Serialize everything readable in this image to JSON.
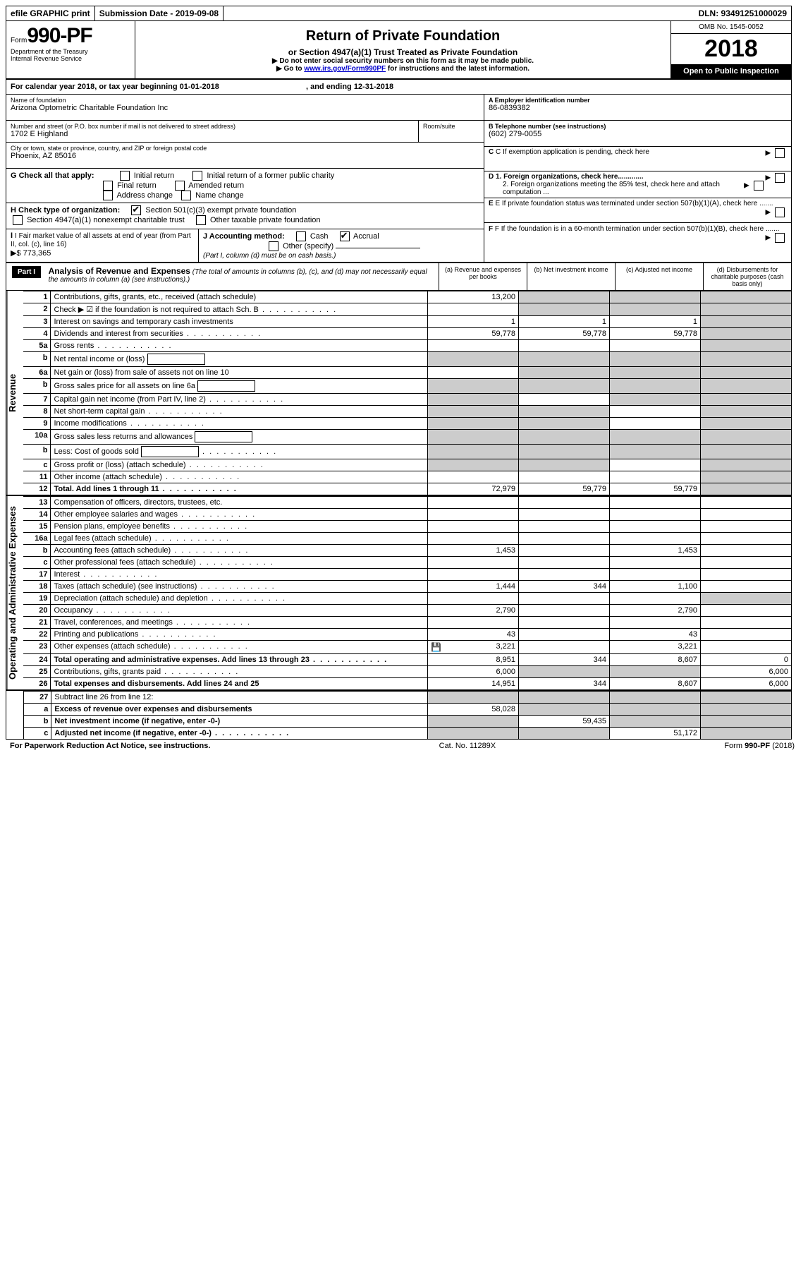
{
  "topbar": {
    "efile": "efile GRAPHIC print",
    "submission": "Submission Date - 2019-09-08",
    "dln": "DLN: 93491251000029"
  },
  "header": {
    "form_label": "Form",
    "form_number": "990-PF",
    "dept1": "Department of the Treasury",
    "dept2": "Internal Revenue Service",
    "title": "Return of Private Foundation",
    "subtitle": "or Section 4947(a)(1) Trust Treated as Private Foundation",
    "note1": "▶ Do not enter social security numbers on this form as it may be made public.",
    "note2_pre": "▶ Go to ",
    "note2_link": "www.irs.gov/Form990PF",
    "note2_post": " for instructions and the latest information.",
    "omb": "OMB No. 1545-0052",
    "year": "2018",
    "open": "Open to Public Inspection"
  },
  "calyear": {
    "text1": "For calendar year 2018, or tax year beginning 01-01-2018",
    "text2": ", and ending 12-31-2018"
  },
  "foundation": {
    "name_label": "Name of foundation",
    "name": "Arizona Optometric Charitable Foundation Inc",
    "addr_label": "Number and street (or P.O. box number if mail is not delivered to street address)",
    "room_label": "Room/suite",
    "addr": "1702 E Highland",
    "city_label": "City or town, state or province, country, and ZIP or foreign postal code",
    "city": "Phoenix, AZ  85016"
  },
  "right_info": {
    "a_label": "A Employer identification number",
    "a_val": "86-0839382",
    "b_label": "B Telephone number (see instructions)",
    "b_val": "(602) 279-0055",
    "c_label": "C If exemption application is pending, check here",
    "d1": "D 1. Foreign organizations, check here.............",
    "d2": "2. Foreign organizations meeting the 85% test, check here and attach computation ...",
    "e": "E  If private foundation status was terminated under section 507(b)(1)(A), check here .......",
    "f": "F  If the foundation is in a 60-month termination under section 507(b)(1)(B), check here .......",
    "g_label": "G Check all that apply:",
    "g_opts": [
      "Initial return",
      "Initial return of a former public charity",
      "Final return",
      "Amended return",
      "Address change",
      "Name change"
    ],
    "h_label": "H Check type of organization:",
    "h_opts": [
      "Section 501(c)(3) exempt private foundation",
      "Section 4947(a)(1) nonexempt charitable trust",
      "Other taxable private foundation"
    ],
    "i_label": "I Fair market value of all assets at end of year (from Part II, col. (c), line 16)",
    "i_val": "▶$  773,365",
    "j_label": "J Accounting method:",
    "j_cash": "Cash",
    "j_accrual": "Accrual",
    "j_other": "Other (specify)",
    "j_note": "(Part I, column (d) must be on cash basis.)"
  },
  "part1": {
    "badge": "Part I",
    "title": "Analysis of Revenue and Expenses",
    "note": "(The total of amounts in columns (b), (c), and (d) may not necessarily equal the amounts in column (a) (see instructions).)",
    "col_a": "(a)   Revenue and expenses per books",
    "col_b": "(b)   Net investment income",
    "col_c": "(c)   Adjusted net income",
    "col_d": "(d)   Disbursements for charitable purposes (cash basis only)"
  },
  "section_labels": {
    "revenue": "Revenue",
    "expenses": "Operating and Administrative Expenses"
  },
  "lines": [
    {
      "no": "1",
      "desc": "Contributions, gifts, grants, etc., received (attach schedule)",
      "a": "13,200",
      "b": "shade",
      "c": "shade",
      "d": "shade"
    },
    {
      "no": "2",
      "desc": "Check ▶ ☑ if the foundation is not required to attach Sch. B",
      "dots": true,
      "a": "",
      "b": "shade",
      "c": "shade",
      "d": "shade",
      "bold_not": true
    },
    {
      "no": "3",
      "desc": "Interest on savings and temporary cash investments",
      "a": "1",
      "b": "1",
      "c": "1",
      "d": "shade"
    },
    {
      "no": "4",
      "desc": "Dividends and interest from securities",
      "dots": true,
      "a": "59,778",
      "b": "59,778",
      "c": "59,778",
      "d": "shade"
    },
    {
      "no": "5a",
      "desc": "Gross rents",
      "dots": true,
      "a": "",
      "b": "",
      "c": "",
      "d": "shade"
    },
    {
      "no": "b",
      "desc": "Net rental income or (loss)",
      "inline": true,
      "a": "shade",
      "b": "shade",
      "c": "shade",
      "d": "shade"
    },
    {
      "no": "6a",
      "desc": "Net gain or (loss) from sale of assets not on line 10",
      "a": "",
      "b": "shade",
      "c": "shade",
      "d": "shade"
    },
    {
      "no": "b",
      "desc": "Gross sales price for all assets on line 6a",
      "inline": true,
      "a": "shade",
      "b": "shade",
      "c": "shade",
      "d": "shade"
    },
    {
      "no": "7",
      "desc": "Capital gain net income (from Part IV, line 2)",
      "dots": true,
      "a": "shade",
      "b": "",
      "c": "shade",
      "d": "shade"
    },
    {
      "no": "8",
      "desc": "Net short-term capital gain",
      "dots": true,
      "a": "shade",
      "b": "shade",
      "c": "",
      "d": "shade"
    },
    {
      "no": "9",
      "desc": "Income modifications",
      "dots": true,
      "a": "shade",
      "b": "shade",
      "c": "",
      "d": "shade"
    },
    {
      "no": "10a",
      "desc": "Gross sales less returns and allowances",
      "inline": true,
      "a": "shade",
      "b": "shade",
      "c": "shade",
      "d": "shade"
    },
    {
      "no": "b",
      "desc": "Less: Cost of goods sold",
      "dots": true,
      "inline": true,
      "a": "shade",
      "b": "shade",
      "c": "shade",
      "d": "shade"
    },
    {
      "no": "c",
      "desc": "Gross profit or (loss) (attach schedule)",
      "dots": true,
      "a": "shade",
      "b": "shade",
      "c": "",
      "d": "shade"
    },
    {
      "no": "11",
      "desc": "Other income (attach schedule)",
      "dots": true,
      "a": "",
      "b": "",
      "c": "",
      "d": "shade"
    },
    {
      "no": "12",
      "desc": "Total. Add lines 1 through 11",
      "dots": true,
      "bold": true,
      "a": "72,979",
      "b": "59,779",
      "c": "59,779",
      "d": "shade"
    }
  ],
  "exp_lines": [
    {
      "no": "13",
      "desc": "Compensation of officers, directors, trustees, etc.",
      "a": "",
      "b": "",
      "c": "",
      "d": ""
    },
    {
      "no": "14",
      "desc": "Other employee salaries and wages",
      "dots": true,
      "a": "",
      "b": "",
      "c": "",
      "d": ""
    },
    {
      "no": "15",
      "desc": "Pension plans, employee benefits",
      "dots": true,
      "a": "",
      "b": "",
      "c": "",
      "d": ""
    },
    {
      "no": "16a",
      "desc": "Legal fees (attach schedule)",
      "dots": true,
      "a": "",
      "b": "",
      "c": "",
      "d": ""
    },
    {
      "no": "b",
      "desc": "Accounting fees (attach schedule)",
      "dots": true,
      "a": "1,453",
      "b": "",
      "c": "1,453",
      "d": ""
    },
    {
      "no": "c",
      "desc": "Other professional fees (attach schedule)",
      "dots": true,
      "a": "",
      "b": "",
      "c": "",
      "d": ""
    },
    {
      "no": "17",
      "desc": "Interest",
      "dots": true,
      "a": "",
      "b": "",
      "c": "",
      "d": ""
    },
    {
      "no": "18",
      "desc": "Taxes (attach schedule) (see instructions)",
      "dots": true,
      "a": "1,444",
      "b": "344",
      "c": "1,100",
      "d": ""
    },
    {
      "no": "19",
      "desc": "Depreciation (attach schedule) and depletion",
      "dots": true,
      "a": "",
      "b": "",
      "c": "",
      "d": "shade"
    },
    {
      "no": "20",
      "desc": "Occupancy",
      "dots": true,
      "a": "2,790",
      "b": "",
      "c": "2,790",
      "d": ""
    },
    {
      "no": "21",
      "desc": "Travel, conferences, and meetings",
      "dots": true,
      "a": "",
      "b": "",
      "c": "",
      "d": ""
    },
    {
      "no": "22",
      "desc": "Printing and publications",
      "dots": true,
      "a": "43",
      "b": "",
      "c": "43",
      "d": ""
    },
    {
      "no": "23",
      "desc": "Other expenses (attach schedule)",
      "dots": true,
      "icon": true,
      "a": "3,221",
      "b": "",
      "c": "3,221",
      "d": ""
    },
    {
      "no": "24",
      "desc": "Total operating and administrative expenses. Add lines 13 through 23",
      "dots": true,
      "bold": true,
      "a": "8,951",
      "b": "344",
      "c": "8,607",
      "d": "0"
    },
    {
      "no": "25",
      "desc": "Contributions, gifts, grants paid",
      "dots": true,
      "a": "6,000",
      "b": "shade",
      "c": "shade",
      "d": "6,000"
    },
    {
      "no": "26",
      "desc": "Total expenses and disbursements. Add lines 24 and 25",
      "bold": true,
      "a": "14,951",
      "b": "344",
      "c": "8,607",
      "d": "6,000"
    }
  ],
  "bottom_lines": [
    {
      "no": "27",
      "desc": "Subtract line 26 from line 12:",
      "a": "shade",
      "b": "shade",
      "c": "shade",
      "d": "shade"
    },
    {
      "no": "a",
      "desc": "Excess of revenue over expenses and disbursements",
      "bold": true,
      "a": "58,028",
      "b": "shade",
      "c": "shade",
      "d": "shade"
    },
    {
      "no": "b",
      "desc": "Net investment income (if negative, enter -0-)",
      "bold": true,
      "a": "shade",
      "b": "59,435",
      "c": "shade",
      "d": "shade"
    },
    {
      "no": "c",
      "desc": "Adjusted net income (if negative, enter -0-)",
      "bold": true,
      "dots": true,
      "a": "shade",
      "b": "shade",
      "c": "51,172",
      "d": "shade"
    }
  ],
  "footer": {
    "left": "For Paperwork Reduction Act Notice, see instructions.",
    "center": "Cat. No. 11289X",
    "right": "Form 990-PF (2018)"
  }
}
